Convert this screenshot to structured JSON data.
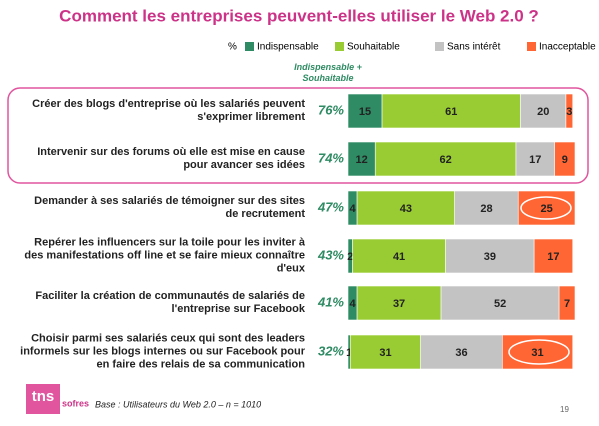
{
  "chart_data": {
    "type": "stacked-bar-horizontal",
    "title": "Comment les entreprises peuvent-elles utiliser le Web 2.0 ?",
    "unit_label": "%",
    "categories": [
      "Créer des blogs d'entreprise où les salariés peuvent s'exprimer librement",
      "Intervenir sur des forums où elle est mise en cause pour avancer ses idées",
      "Demander à ses salariés de témoigner sur des sites de recrutement",
      "Repérer les influencers sur la toile pour les inviter à des manifestations off line et se faire mieux connaître d'eux",
      "Faciliter la création de communautés de salariés de l'entreprise sur Facebook",
      "Choisir parmi ses salariés ceux qui sont des leaders informels sur les blogs internes ou sur Facebook pour en faire des relais de sa communication"
    ],
    "series": [
      {
        "name": "Indispensable",
        "color": "#2e8b63",
        "values": [
          15,
          12,
          4,
          2,
          4,
          1
        ]
      },
      {
        "name": "Souhaitable",
        "color": "#99cc33",
        "values": [
          61,
          62,
          43,
          41,
          37,
          31
        ]
      },
      {
        "name": "Sans intérêt",
        "color": "#c3c3c3",
        "values": [
          20,
          17,
          28,
          39,
          52,
          36
        ]
      },
      {
        "name": "Inacceptable",
        "color": "#ff6633",
        "values": [
          3,
          9,
          25,
          17,
          7,
          31
        ]
      }
    ],
    "totals": {
      "header": "Indispensable + Souhaitable",
      "color": "#2e8b63",
      "values": [
        76,
        74,
        47,
        43,
        41,
        32
      ],
      "value_labels": [
        "76%",
        "74%",
        "47%",
        "43%",
        "41%",
        "32%"
      ]
    },
    "xlim": [
      0,
      100
    ],
    "footnote": "Base : Utilisateurs du Web 2.0 – n = 1010",
    "page_number": "19",
    "logo": {
      "tns": "tns",
      "sofres": "sofres"
    }
  }
}
